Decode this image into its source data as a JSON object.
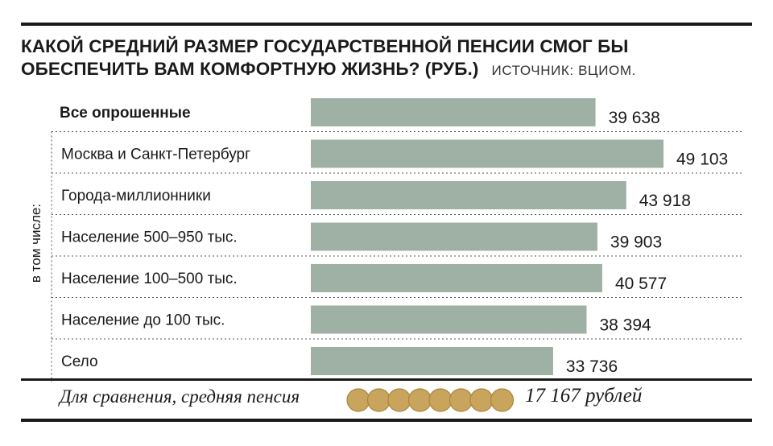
{
  "header": {
    "title_line1": "КАКОЙ СРЕДНИЙ РАЗМЕР ГОСУДАРСТВЕННОЙ ПЕНСИИ СМОГ БЫ",
    "title_line2": "ОБЕСПЕЧИТЬ ВАМ КОМФОРТНУЮ ЖИЗНЬ? (РУБ.)",
    "source": "ИСТОЧНИК: ВЦИОМ."
  },
  "group_label": "в том числе:",
  "colors": {
    "bar": "#9fb0a5",
    "coin": "#c9a45c",
    "coin_edge": "#a9853f",
    "text": "#1a1a1a"
  },
  "chart_data": {
    "type": "bar",
    "orientation": "horizontal",
    "categories": [
      "Все опрошенные",
      "Москва и Санкт-Петербург",
      "Города-миллионники",
      "Население 500–950 тыс.",
      "Население 100–500 тыс.",
      "Население до 100 тыс.",
      "Село"
    ],
    "values": [
      39638,
      49103,
      43918,
      39903,
      40577,
      38394,
      33736
    ],
    "value_labels": [
      "39 638",
      "49 103",
      "43 918",
      "39 903",
      "40 577",
      "38 394",
      "33 736"
    ],
    "xlim": [
      0,
      49103
    ],
    "grid": false,
    "legend": "none"
  },
  "comparison": {
    "label": "Для сравнения, средняя пенсия",
    "value": "17 167 рублей",
    "coin_icon": "coin-stack-icon"
  }
}
